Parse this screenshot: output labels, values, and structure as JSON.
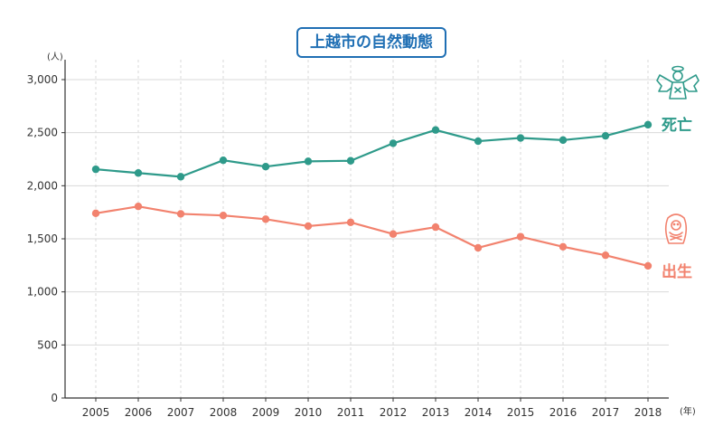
{
  "title": "上越市の自然動態",
  "y_unit": "(人)",
  "x_unit": "(年)",
  "colors": {
    "death": "#2e9a8a",
    "birth": "#f2826e",
    "title": "#1f6fb4",
    "grid": "#d9d9d9"
  },
  "legend": {
    "death": {
      "label": "死亡",
      "icon": "angel-icon"
    },
    "birth": {
      "label": "出生",
      "icon": "baby-icon"
    }
  },
  "chart_data": {
    "type": "line",
    "title": "上越市の自然動態",
    "xlabel": "(年)",
    "ylabel": "(人)",
    "ylim": [
      0,
      3000
    ],
    "y_ticks": [
      0,
      500,
      1000,
      1500,
      2000,
      2500,
      3000
    ],
    "y_tick_labels": [
      "0",
      "500",
      "1,000",
      "1,500",
      "2,000",
      "2,500",
      "3,000"
    ],
    "x": [
      "2005",
      "2006",
      "2007",
      "2008",
      "2009",
      "2010",
      "2011",
      "2012",
      "2013",
      "2014",
      "2015",
      "2016",
      "2017",
      "2018"
    ],
    "grid": true,
    "series": [
      {
        "name": "死亡",
        "key": "death",
        "values": [
          2155,
          2120,
          2085,
          2240,
          2180,
          2230,
          2235,
          2400,
          2525,
          2420,
          2450,
          2430,
          2470,
          2575
        ]
      },
      {
        "name": "出生",
        "key": "birth",
        "values": [
          1740,
          1805,
          1735,
          1720,
          1685,
          1620,
          1655,
          1545,
          1610,
          1415,
          1520,
          1425,
          1345,
          1245
        ]
      }
    ]
  }
}
